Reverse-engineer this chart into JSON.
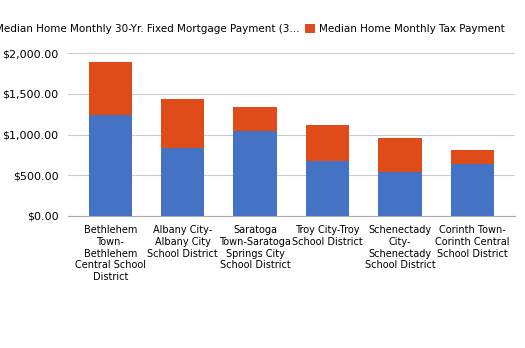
{
  "categories": [
    "Bethlehem\nTown-\nBethlehem\nCentral School\nDistrict",
    "Albany City-\nAlbany City\nSchool District",
    "Saratoga\nTown-Saratoga\nSprings City\nSchool District",
    "Troy City-Troy\nSchool District",
    "Schenectady\nCity-\nSchenectady\nSchool District",
    "Corinth Town-\nCorinth Central\nSchool District"
  ],
  "mortgage_values": [
    1240,
    830,
    1040,
    670,
    545,
    635
  ],
  "tax_values": [
    650,
    610,
    295,
    445,
    415,
    170
  ],
  "mortgage_color": "#4472c4",
  "tax_color": "#e04b1a",
  "legend_mortgage": "Median Home Monthly 30-Yr. Fixed Mortgage Payment (3...",
  "legend_tax": "Median Home Monthly Tax Payment",
  "ylim": [
    0,
    2100
  ],
  "yticks": [
    0,
    500,
    1000,
    1500,
    2000
  ],
  "ytick_labels": [
    "$0.00",
    "$500.00",
    "$1,000.00",
    "$1,500.00",
    "$2,000.00"
  ],
  "background_color": "#ffffff",
  "grid_color": "#cccccc",
  "bar_width": 0.6
}
